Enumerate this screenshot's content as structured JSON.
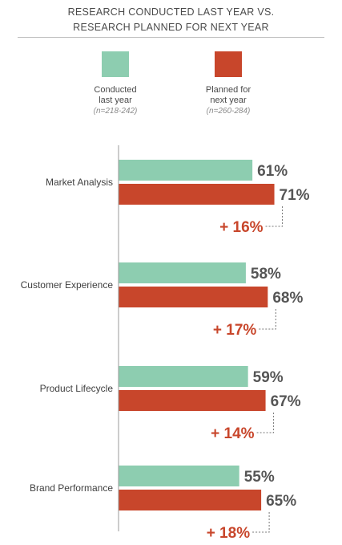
{
  "chart_data": {
    "type": "bar",
    "orientation": "horizontal",
    "title": "RESEARCH CONDUCTED LAST YEAR VS.\nRESEARCH PLANNED FOR NEXT YEAR",
    "categories": [
      "Market Analysis",
      "Customer Experience",
      "Product Lifecycle",
      "Brand Performance"
    ],
    "series": [
      {
        "name": "Conducted\nlast year",
        "sample": "(n=218-242)",
        "color": "#8dcdb0",
        "values": [
          61,
          58,
          59,
          55
        ],
        "labels": [
          "61%",
          "58%",
          "59%",
          "55%"
        ]
      },
      {
        "name": "Planned for\nnext year",
        "sample": "(n=260-284)",
        "color": "#c8462b",
        "values": [
          71,
          68,
          67,
          65
        ],
        "labels": [
          "71%",
          "68%",
          "67%",
          "65%"
        ]
      }
    ],
    "change_labels": [
      "+ 16%",
      "+ 17%",
      "+ 14%",
      "+ 18%"
    ],
    "change_color": "#c8462b",
    "value_label_color": "#555555",
    "xlim": [
      0,
      100
    ],
    "legend": "top",
    "grid": false
  }
}
